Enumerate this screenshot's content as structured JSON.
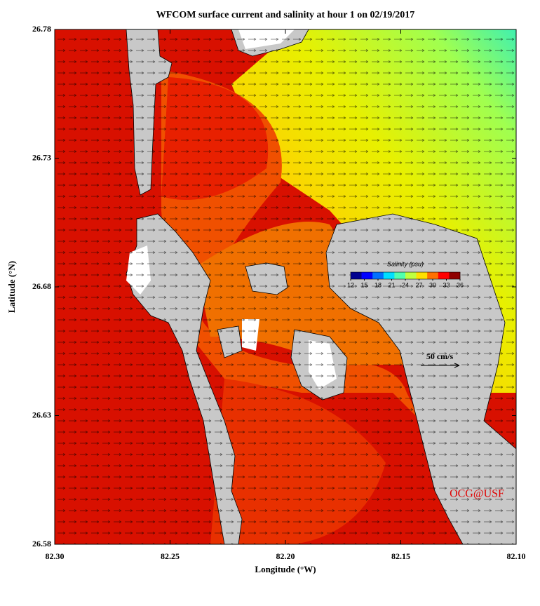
{
  "chart_data": {
    "type": "map",
    "title": "WFCOM surface current and salinity at hour 1 on 02/19/2017",
    "xlabel": "Longitude (°W)",
    "ylabel": "Latitude (°N)",
    "xlim": [
      82.3,
      82.1
    ],
    "xticks": [
      {
        "value": 82.3,
        "label": "82.30"
      },
      {
        "value": 82.25,
        "label": "82.25"
      },
      {
        "value": 82.2,
        "label": "82.20"
      },
      {
        "value": 82.15,
        "label": "82.15"
      },
      {
        "value": 82.1,
        "label": "82.10"
      }
    ],
    "ylim": [
      26.58,
      26.78
    ],
    "yticks": [
      26.58,
      26.63,
      26.68,
      26.73,
      26.78
    ],
    "colorbar": {
      "title": "Salinity (psu)",
      "lim": [
        12,
        36
      ],
      "ticks": [
        12,
        15,
        18,
        21,
        24,
        27,
        30,
        33,
        36
      ],
      "colors": [
        "#00008f",
        "#0000ff",
        "#0070ff",
        "#00dfff",
        "#50ffaf",
        "#bfff40",
        "#ffdf00",
        "#ff7000",
        "#ff0000",
        "#8f0000"
      ]
    },
    "scale_label": "50 cm/s",
    "credit": "OCG@USF"
  }
}
